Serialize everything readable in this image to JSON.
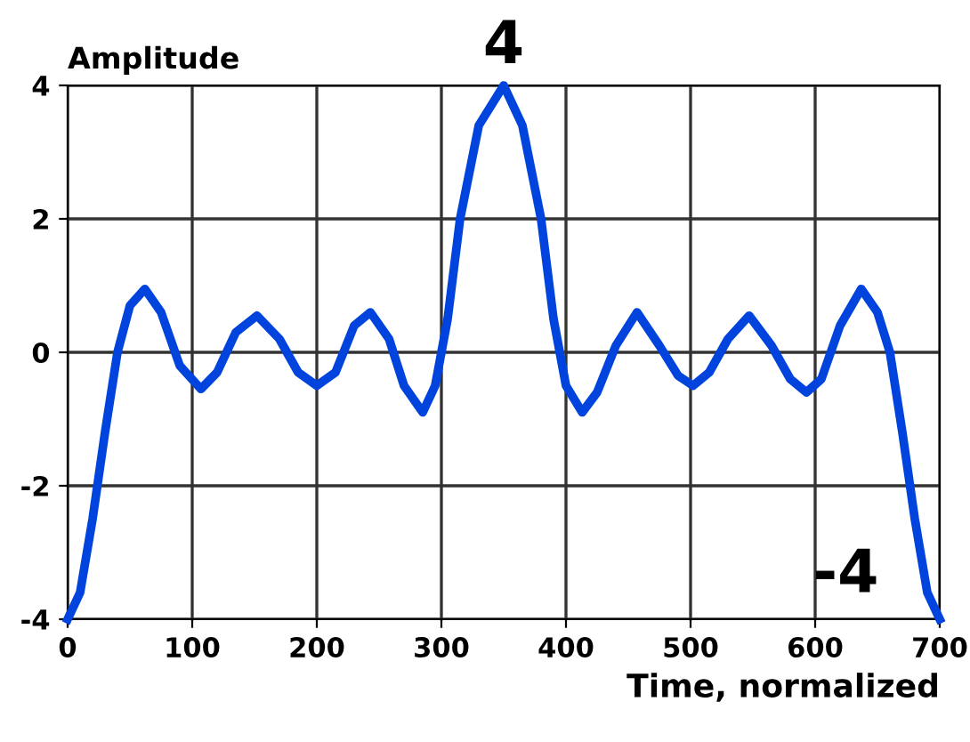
{
  "chart_data": {
    "type": "line",
    "xlabel": "Time, normalized",
    "ylabel": "Amplitude",
    "annotations": [
      {
        "text": "4",
        "x": 350,
        "y": 4
      },
      {
        "text": "-4",
        "x": 700,
        "y": -4
      }
    ],
    "series": [
      {
        "color": "#0044dd",
        "x": [
          0,
          10,
          20,
          30,
          40,
          50,
          62,
          75,
          90,
          107,
          120,
          135,
          152,
          170,
          185,
          200,
          215,
          230,
          243,
          258,
          270,
          285,
          295,
          305,
          315,
          330,
          350,
          365,
          380,
          390,
          400,
          413,
          425,
          440,
          457,
          475,
          490,
          502,
          515,
          530,
          547,
          565,
          580,
          593,
          605,
          620,
          637,
          650,
          660,
          670,
          680,
          690,
          700
        ],
        "values": [
          -4,
          -3.6,
          -2.5,
          -1.2,
          0,
          0.7,
          0.95,
          0.6,
          -0.2,
          -0.55,
          -0.3,
          0.3,
          0.55,
          0.2,
          -0.3,
          -0.5,
          -0.3,
          0.4,
          0.6,
          0.2,
          -0.5,
          -0.9,
          -0.5,
          0.5,
          2,
          3.4,
          4,
          3.4,
          2,
          0.5,
          -0.5,
          -0.9,
          -0.6,
          0.1,
          0.6,
          0.1,
          -0.35,
          -0.5,
          -0.3,
          0.2,
          0.55,
          0.1,
          -0.4,
          -0.6,
          -0.4,
          0.4,
          0.95,
          0.6,
          0,
          -1.2,
          -2.5,
          -3.6,
          -4
        ]
      }
    ],
    "xlim": [
      0,
      700
    ],
    "ylim": [
      -4,
      4
    ],
    "xticks": [
      0,
      100,
      200,
      300,
      400,
      500,
      600,
      700
    ],
    "yticks": [
      -4,
      -2,
      0,
      2,
      4
    ],
    "grid": true,
    "marker": "none",
    "line_style": "solid"
  }
}
